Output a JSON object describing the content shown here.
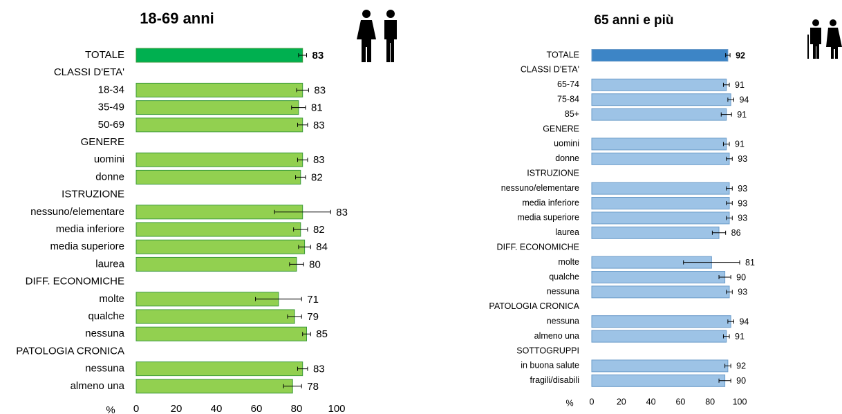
{
  "chart_data": [
    {
      "type": "bar",
      "title": "18-69 anni",
      "xlabel": "%",
      "categories": [
        "TOTALE",
        "CLASSI D'ETA'",
        "18-34",
        "35-49",
        "50-69",
        "GENERE",
        "uomini",
        "donne",
        "ISTRUZIONE",
        "nessuno/elementare",
        "media inferiore",
        "media superiore",
        "laurea",
        "DIFF. ECONOMICHE",
        "molte",
        "qualche",
        "nessuna",
        "PATOLOGIA CRONICA",
        "nessuna",
        "almeno una"
      ],
      "values": [
        83,
        null,
        83,
        81,
        83,
        null,
        83,
        82,
        null,
        83,
        82,
        84,
        80,
        null,
        71,
        79,
        85,
        null,
        83,
        78
      ],
      "errors": [
        2,
        null,
        3,
        3.5,
        2.5,
        null,
        2.5,
        2.5,
        null,
        14,
        3.5,
        3,
        3.5,
        null,
        11.5,
        3.5,
        2,
        null,
        2.5,
        4.5
      ],
      "colors": [
        "#00b050",
        null,
        "#92d050",
        "#92d050",
        "#92d050",
        null,
        "#92d050",
        "#92d050",
        null,
        "#92d050",
        "#92d050",
        "#92d050",
        "#92d050",
        null,
        "#92d050",
        "#92d050",
        "#92d050",
        null,
        "#92d050",
        "#92d050"
      ],
      "xlim": [
        0,
        100
      ],
      "xticks": [
        0,
        20,
        40,
        60,
        80,
        100
      ]
    },
    {
      "type": "bar",
      "title": "65 anni e più",
      "xlabel": "%",
      "categories": [
        "TOTALE",
        "CLASSI D'ETA'",
        "65-74",
        "75-84",
        "85+",
        "GENERE",
        "uomini",
        "donne",
        "ISTRUZIONE",
        "nessuno/elementare",
        "media inferiore",
        "media superiore",
        "laurea",
        "DIFF. ECONOMICHE",
        "molte",
        "qualche",
        "nessuna",
        "PATOLOGIA CRONICA",
        "nessuna",
        "almeno una",
        "SOTTOGRUPPI",
        "in buona salute",
        "fragili/disabili"
      ],
      "values": [
        92,
        null,
        91,
        94,
        91,
        null,
        91,
        93,
        null,
        93,
        93,
        93,
        86,
        null,
        81,
        90,
        93,
        null,
        94,
        91,
        null,
        92,
        90
      ],
      "errors": [
        1.5,
        null,
        2,
        2,
        3.5,
        null,
        2,
        2,
        null,
        2,
        2,
        2,
        4.5,
        null,
        19,
        4,
        2,
        null,
        2,
        2,
        null,
        2,
        4
      ],
      "colors": [
        "#3d85c6",
        null,
        "#9dc3e6",
        "#9dc3e6",
        "#9dc3e6",
        null,
        "#9dc3e6",
        "#9dc3e6",
        null,
        "#9dc3e6",
        "#9dc3e6",
        "#9dc3e6",
        "#9dc3e6",
        null,
        "#9dc3e6",
        "#9dc3e6",
        "#9dc3e6",
        null,
        "#9dc3e6",
        "#9dc3e6",
        null,
        "#9dc3e6",
        "#9dc3e6"
      ],
      "xlim": [
        0,
        100
      ],
      "xticks": [
        0,
        20,
        40,
        60,
        80,
        100
      ]
    }
  ]
}
